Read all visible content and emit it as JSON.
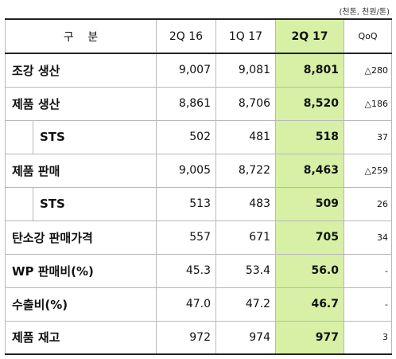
{
  "unit_note": "(천톤, 천원/톤)",
  "header": {
    "category": "구    분",
    "col1": "2Q 16",
    "col2": "1Q 17",
    "col3": "2Q 17",
    "col4": "QoQ"
  },
  "rows": [
    {
      "label": "조강 생산",
      "c1": "9,007",
      "c2": "9,081",
      "c3": "8,801",
      "c4": "△280"
    },
    {
      "label": "제품 생산",
      "c1": "8,861",
      "c2": "8,706",
      "c3": "8,520",
      "c4": "△186"
    },
    {
      "label": "STS",
      "c1": "502",
      "c2": "481",
      "c3": "518",
      "c4": "37"
    },
    {
      "label": "제품 판매",
      "c1": "9,005",
      "c2": "8,722",
      "c3": "8,463",
      "c4": "△259"
    },
    {
      "label": "STS",
      "c1": "513",
      "c2": "483",
      "c3": "509",
      "c4": "26"
    },
    {
      "label": "탄소강 판매가격",
      "c1": "557",
      "c2": "671",
      "c3": "705",
      "c4": "34"
    },
    {
      "label": "WP 판매비(%)",
      "c1": "45.3",
      "c2": "53.4",
      "c3": "56.0",
      "c4": "-"
    },
    {
      "label": "수출비(%)",
      "c1": "47.0",
      "c2": "47.2",
      "c3": "46.7",
      "c4": "-"
    },
    {
      "label": "제품 재고",
      "c1": "972",
      "c2": "974",
      "c3": "977",
      "c4": "3"
    }
  ],
  "colors": {
    "highlight": "#d7f0a6",
    "border": "#b8b8b8",
    "rule": "#222222"
  }
}
